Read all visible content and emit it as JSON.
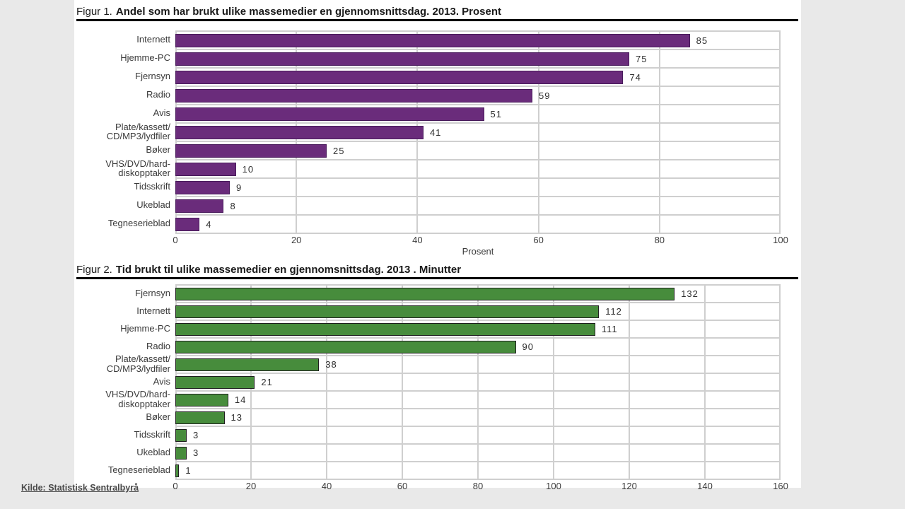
{
  "page": {
    "background_color": "#e9e9e9",
    "panel_color": "#ffffff"
  },
  "source": {
    "label": "Kilde: Statistisk Sentralbyrå"
  },
  "chart_data": [
    {
      "type": "bar",
      "orientation": "horizontal",
      "figure_prefix": "Figur 1.",
      "title": "Andel som har brukt ulike massemedier en gjennomsnittsdag. 2013. Prosent",
      "categories": [
        "Internett",
        "Hjemme-PC",
        "Fjernsyn",
        "Radio",
        "Avis",
        "Plate/kassett/\nCD/MP3/lydfiler",
        "Bøker",
        "VHS/DVD/hard-\ndiskopptaker",
        "Tidsskrift",
        "Ukeblad",
        "Tegneserieblad"
      ],
      "values": [
        85,
        75,
        74,
        59,
        51,
        41,
        25,
        10,
        9,
        8,
        4
      ],
      "xlabel": "Prosent",
      "xlim": [
        0,
        100
      ],
      "xticks": [
        0,
        20,
        40,
        60,
        80,
        100
      ],
      "grid": true,
      "legend": "none",
      "bar_color": "#6a2c7b",
      "bar_border_color": "#47195a"
    },
    {
      "type": "bar",
      "orientation": "horizontal",
      "figure_prefix": "Figur 2.",
      "title": "Tid brukt til ulike massemedier en gjennomsnittsdag. 2013 . Minutter",
      "categories": [
        "Fjernsyn",
        "Internett",
        "Hjemme-PC",
        "Radio",
        "Plate/kassett/\nCD/MP3/lydfiler",
        "Avis",
        "VHS/DVD/hard-\ndiskopptaker",
        "Bøker",
        "Tidsskrift",
        "Ukeblad",
        "Tegneserieblad"
      ],
      "values": [
        132,
        112,
        111,
        90,
        38,
        21,
        14,
        13,
        3,
        3,
        1
      ],
      "xlabel": "",
      "xlim": [
        0,
        160
      ],
      "xticks": [
        0,
        20,
        40,
        60,
        80,
        100,
        120,
        140,
        160
      ],
      "grid": true,
      "legend": "none",
      "bar_color": "#478c3c",
      "bar_border_color": "#1f1f1f"
    }
  ]
}
